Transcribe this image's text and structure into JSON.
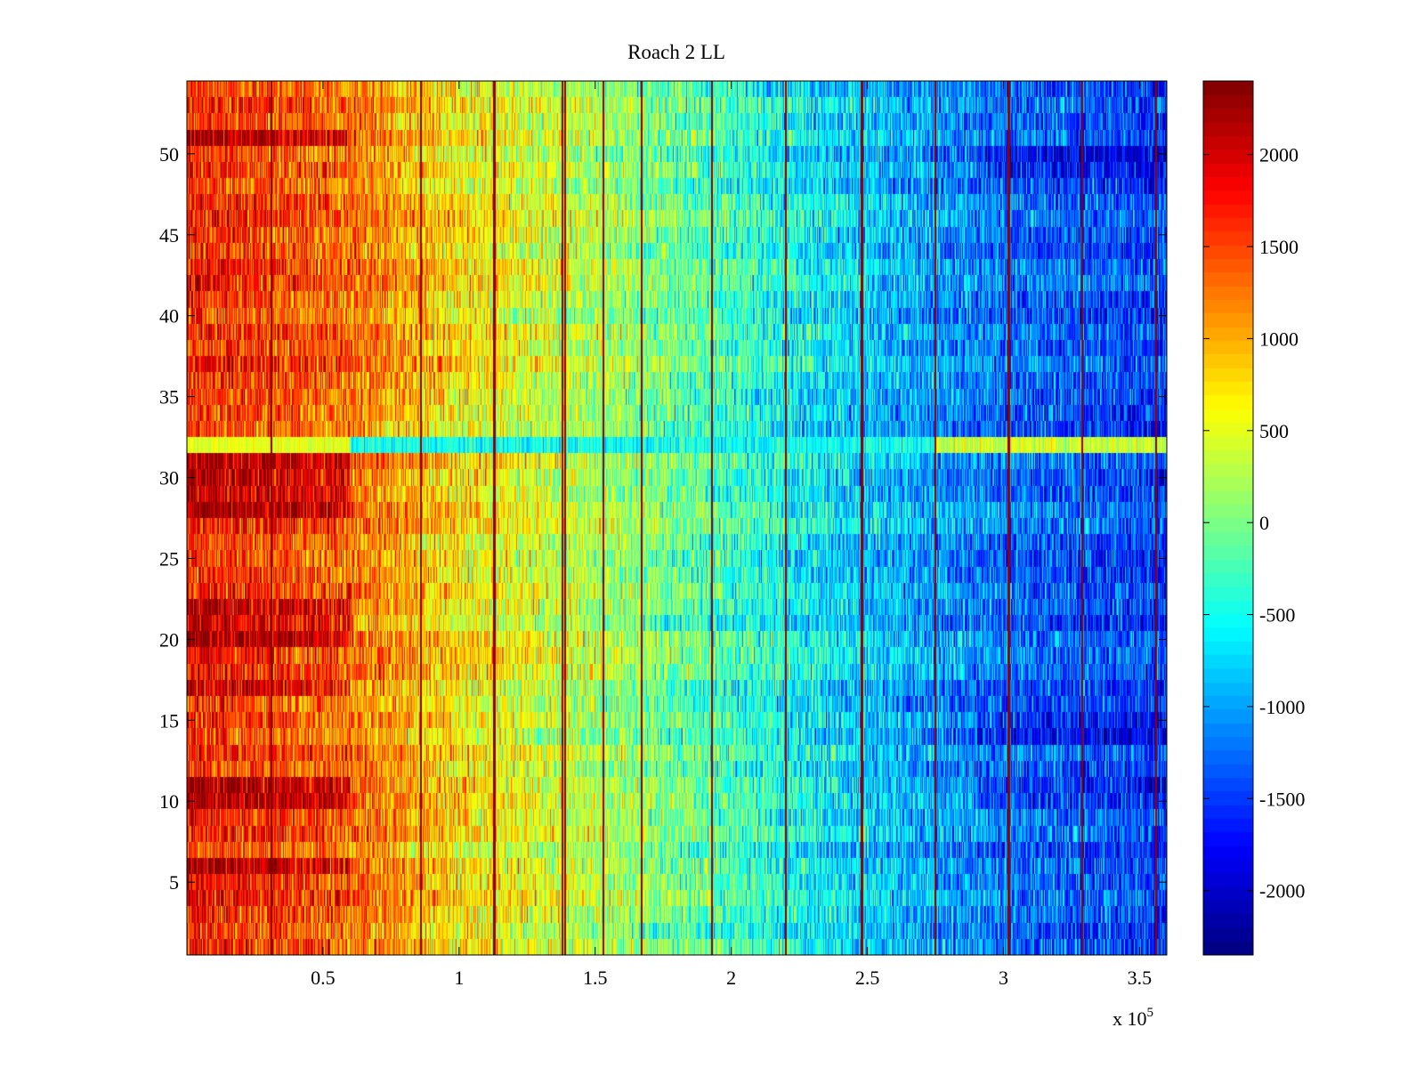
{
  "chart_data": {
    "type": "heatmap",
    "title": "Roach 2 LL",
    "xlabel": "",
    "ylabel": "",
    "x_multiplier_label": "x 10",
    "x_multiplier_exponent": "5",
    "xlim": [
      0,
      3.6
    ],
    "ylim": [
      0.5,
      54.5
    ],
    "rows": 54,
    "xticks": [
      0.5,
      1,
      1.5,
      2,
      2.5,
      3,
      3.5
    ],
    "xtick_labels": [
      "0.5",
      "1",
      "1.5",
      "2",
      "2.5",
      "3",
      "3.5"
    ],
    "yticks": [
      5,
      10,
      15,
      20,
      25,
      30,
      35,
      40,
      45,
      50
    ],
    "ytick_labels": [
      "5",
      "10",
      "15",
      "20",
      "25",
      "30",
      "35",
      "40",
      "45",
      "50"
    ],
    "colorbar": {
      "colormap": "jet",
      "clim": [
        -2350,
        2400
      ],
      "ticks": [
        2000,
        1500,
        1000,
        500,
        0,
        -500,
        -1000,
        -1500,
        -2000
      ],
      "tick_labels": [
        "2000",
        "1500",
        "1000",
        "500",
        "0",
        "-500",
        "-1000",
        "-1500",
        "-2000"
      ]
    },
    "trend": {
      "description_points_x": [
        0,
        0.6,
        1.0,
        1.5,
        2.0,
        2.5,
        3.0,
        3.6
      ],
      "approx_values": [
        1700,
        1300,
        700,
        250,
        -300,
        -800,
        -1250,
        -1500
      ]
    },
    "hot_rows_left": [
      51,
      31,
      30,
      29,
      28,
      22,
      21,
      20,
      17,
      11,
      10,
      6
    ],
    "anomalous_row": {
      "row": 32,
      "approx_value": 400
    },
    "vertical_streak_x": [
      0.31,
      0.86,
      1.13,
      1.38,
      1.39,
      1.53,
      1.67,
      1.93,
      2.2,
      2.48,
      2.75,
      3.02,
      3.29,
      3.56
    ]
  }
}
